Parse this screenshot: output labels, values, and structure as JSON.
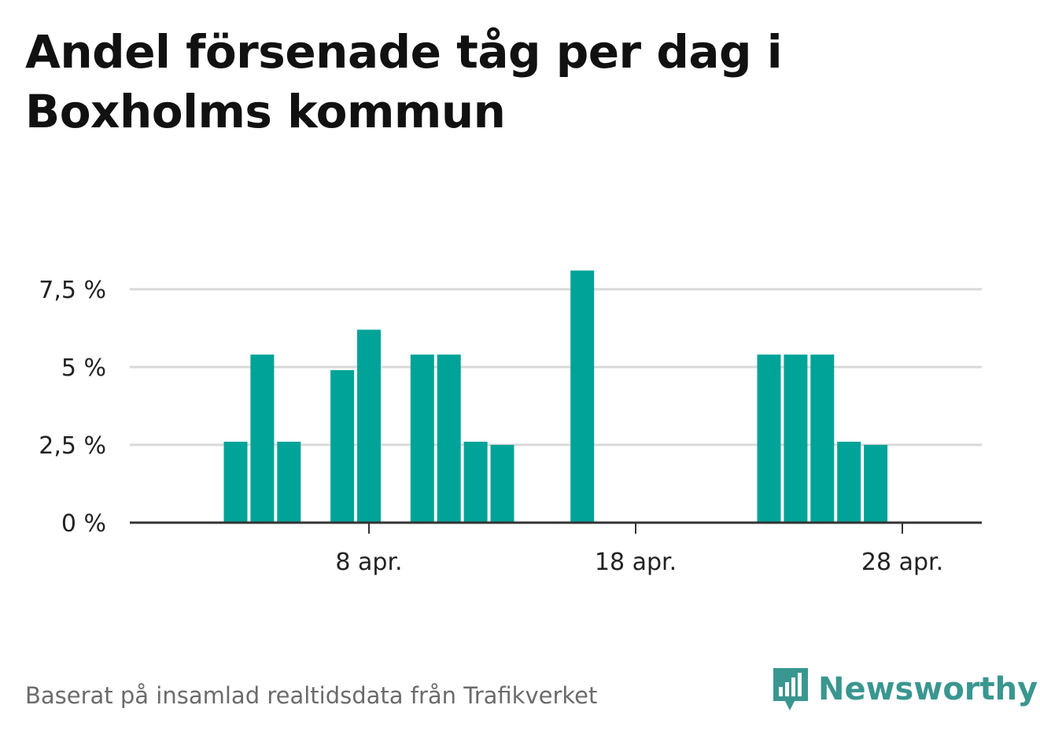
{
  "title": "Andel försenade tåg per dag i Boxholms kommun",
  "source": "Baserat på insamlad realtidsdata från Trafikverket",
  "brand": {
    "name": "Newsworthy",
    "logo_icon": "newsworthy-logo-icon"
  },
  "colors": {
    "bar": "#00a398",
    "grid": "#d9d9d9",
    "axis": "#333333",
    "brand": "#3a9690"
  },
  "chart_data": {
    "type": "bar",
    "x_axis": {
      "start_day": 1,
      "end_day": 32,
      "ticks": [
        {
          "day": 8,
          "label": "8 apr."
        },
        {
          "day": 18,
          "label": "18 apr."
        },
        {
          "day": 28,
          "label": "28 apr."
        }
      ]
    },
    "y_axis": {
      "ylim": [
        0,
        9
      ],
      "ticks": [
        {
          "value": 0,
          "label": "0 %"
        },
        {
          "value": 2.5,
          "label": "2,5 %"
        },
        {
          "value": 5,
          "label": "5 %"
        },
        {
          "value": 7.5,
          "label": "7,5 %"
        }
      ]
    },
    "grid": true,
    "points": [
      {
        "day": 3,
        "value": 2.6
      },
      {
        "day": 4,
        "value": 5.4
      },
      {
        "day": 5,
        "value": 2.6
      },
      {
        "day": 7,
        "value": 4.9
      },
      {
        "day": 8,
        "value": 6.2
      },
      {
        "day": 10,
        "value": 5.4
      },
      {
        "day": 11,
        "value": 5.4
      },
      {
        "day": 12,
        "value": 2.6
      },
      {
        "day": 13,
        "value": 2.5
      },
      {
        "day": 16,
        "value": 8.1
      },
      {
        "day": 23,
        "value": 5.4
      },
      {
        "day": 24,
        "value": 5.4
      },
      {
        "day": 25,
        "value": 5.4
      },
      {
        "day": 26,
        "value": 2.6
      },
      {
        "day": 27,
        "value": 2.5
      }
    ]
  }
}
